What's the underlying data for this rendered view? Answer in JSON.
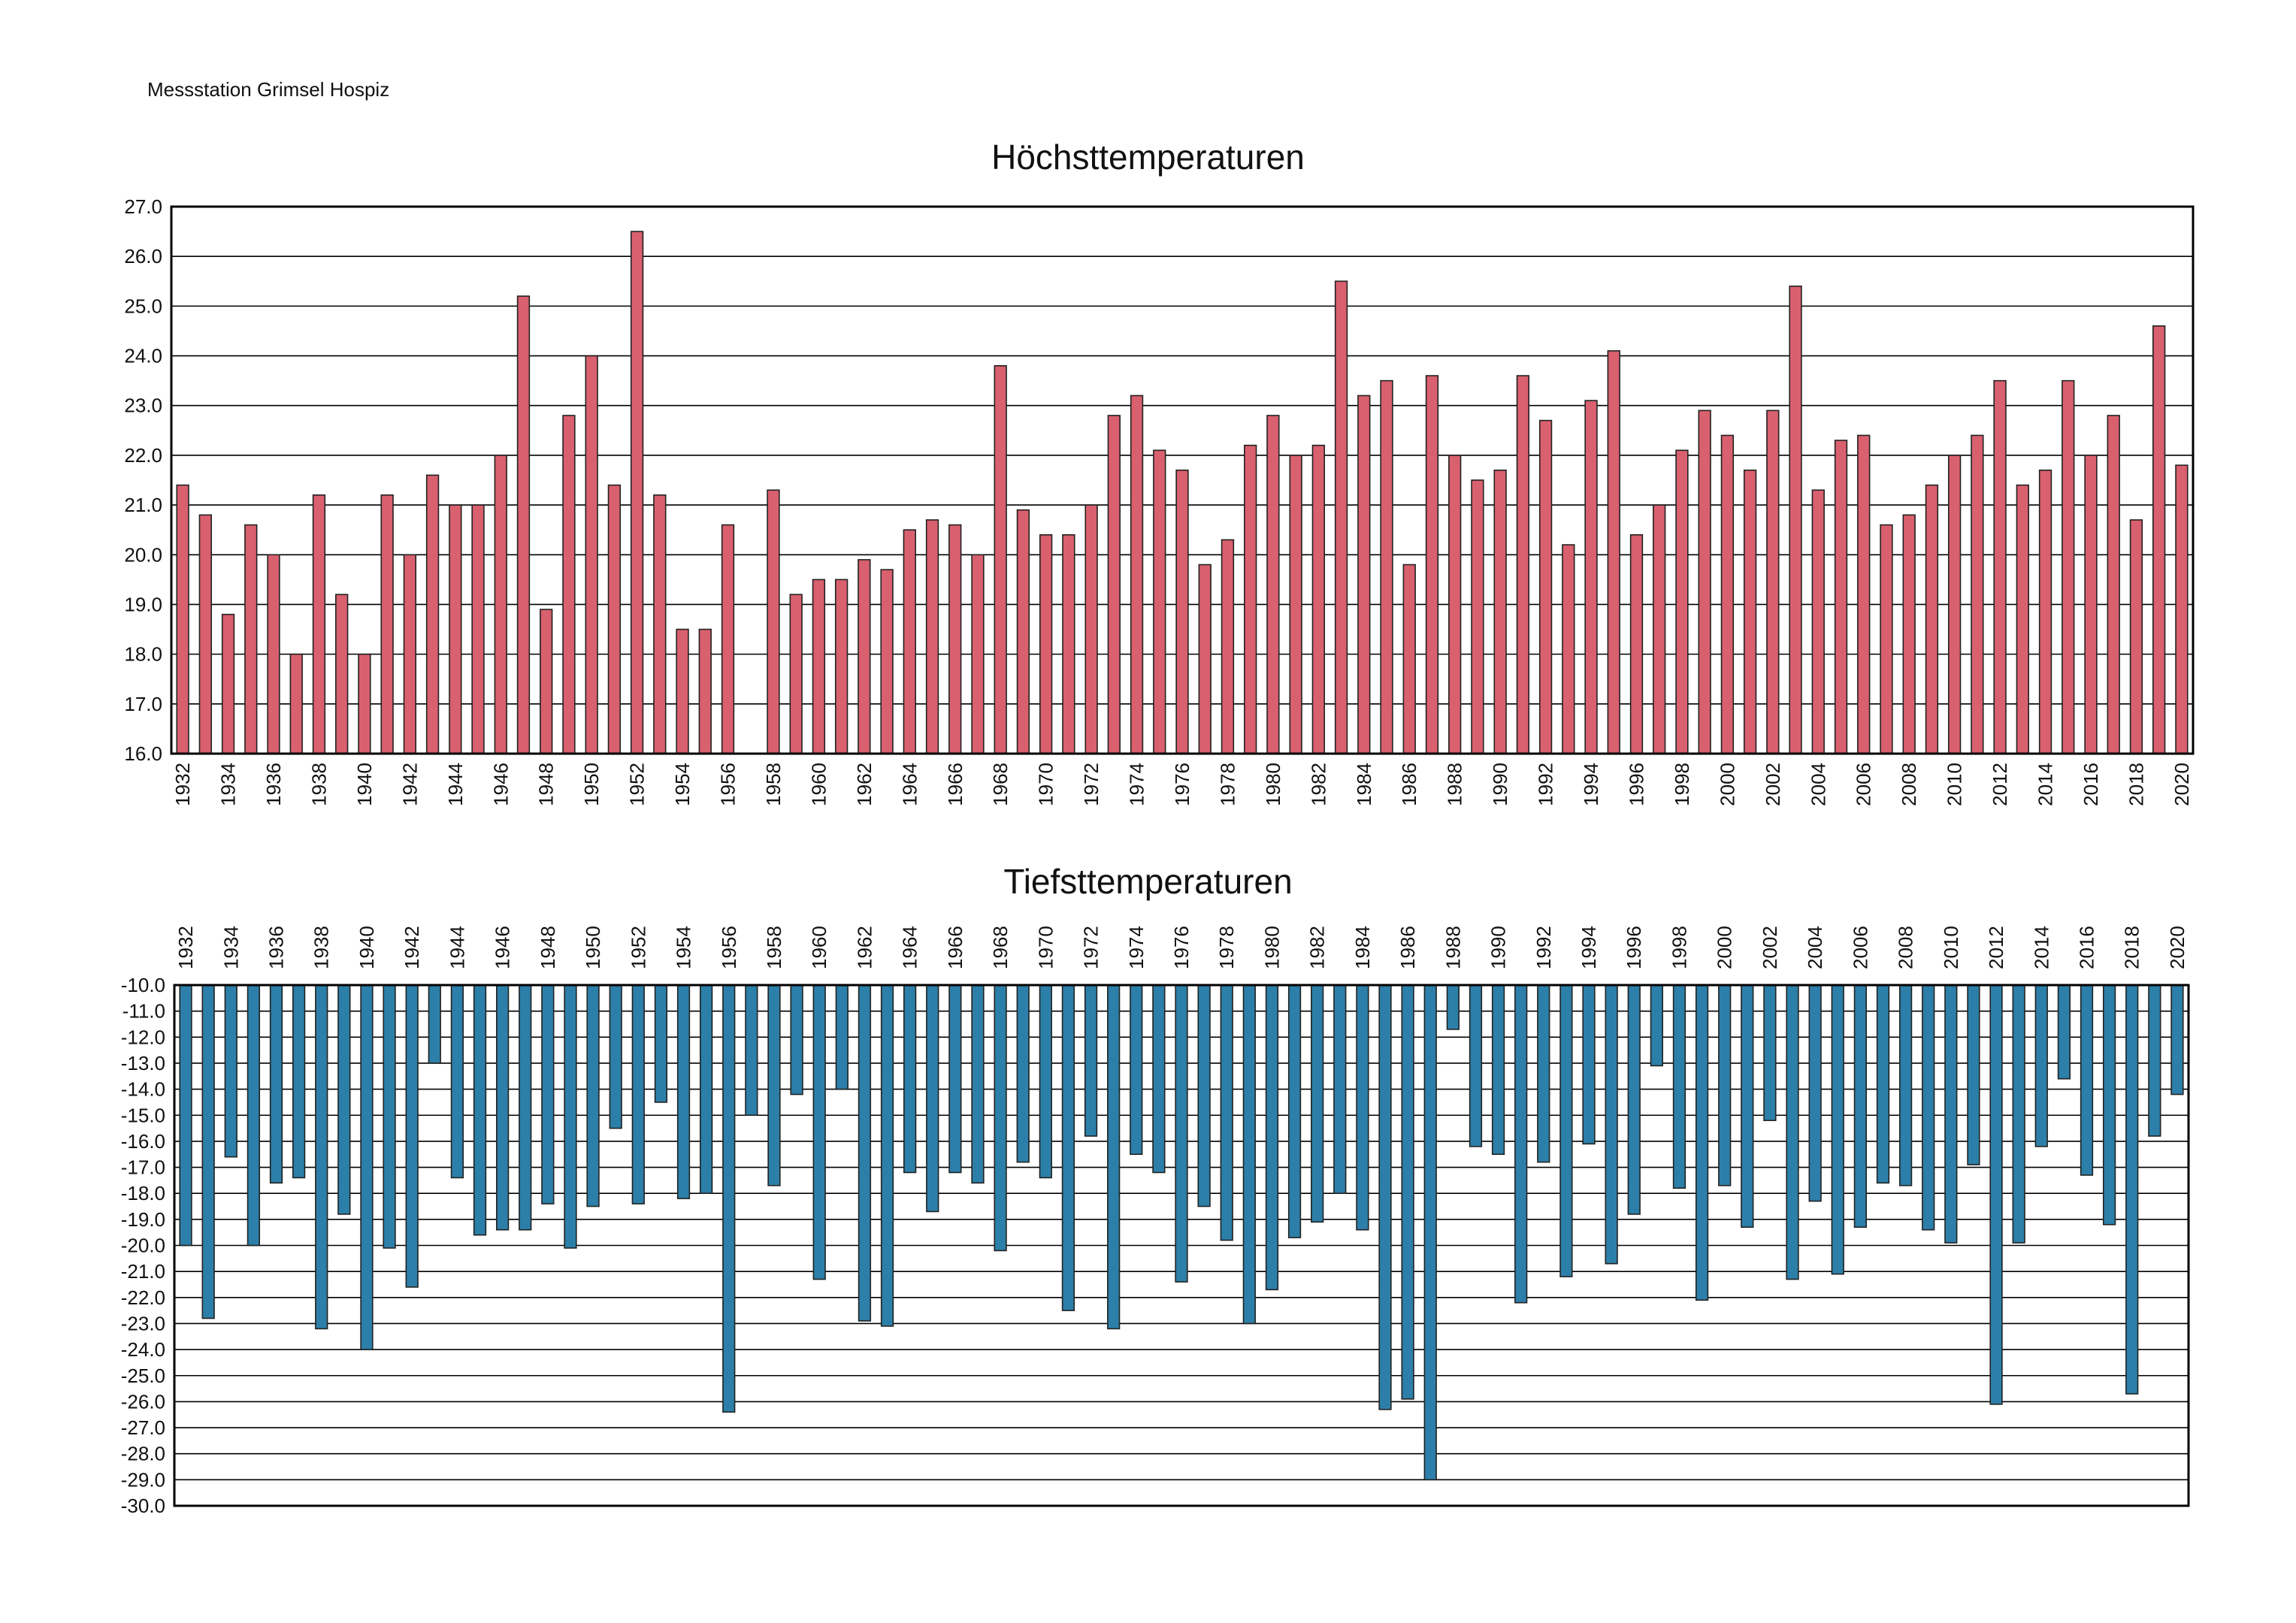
{
  "header": {
    "station": "Messstation Grimsel Hospiz"
  },
  "chart_data": [
    {
      "type": "bar",
      "title": "Höchsttemperaturen",
      "xlabel": "",
      "ylabel": "",
      "ylim": [
        16.0,
        27.0
      ],
      "yticks": [
        "16.0",
        "17.0",
        "18.0",
        "19.0",
        "20.0",
        "21.0",
        "22.0",
        "23.0",
        "24.0",
        "25.0",
        "26.0",
        "27.0"
      ],
      "grid": true,
      "color": "#d9606e",
      "categories": [
        1932,
        1933,
        1934,
        1935,
        1936,
        1937,
        1938,
        1939,
        1940,
        1941,
        1942,
        1943,
        1944,
        1945,
        1946,
        1947,
        1948,
        1949,
        1950,
        1951,
        1952,
        1953,
        1954,
        1955,
        1956,
        1957,
        1958,
        1959,
        1960,
        1961,
        1962,
        1963,
        1964,
        1965,
        1966,
        1967,
        1968,
        1969,
        1970,
        1971,
        1972,
        1973,
        1974,
        1975,
        1976,
        1977,
        1978,
        1979,
        1980,
        1981,
        1982,
        1983,
        1984,
        1985,
        1986,
        1987,
        1988,
        1989,
        1990,
        1991,
        1992,
        1993,
        1994,
        1995,
        1996,
        1997,
        1998,
        1999,
        2000,
        2001,
        2002,
        2003,
        2004,
        2005,
        2006,
        2007,
        2008,
        2009,
        2010,
        2011,
        2012,
        2013,
        2014,
        2015,
        2016,
        2017,
        2018,
        2019,
        2020
      ],
      "tick_labels": [
        "1932",
        "1934",
        "1936",
        "1938",
        "1940",
        "1942",
        "1944",
        "1946",
        "1948",
        "1950",
        "1952",
        "1954",
        "1956",
        "1958",
        "1960",
        "1962",
        "1964",
        "1966",
        "1968",
        "1970",
        "1972",
        "1974",
        "1976",
        "1978",
        "1980",
        "1982",
        "1984",
        "1986",
        "1988",
        "1990",
        "1992",
        "1994",
        "1996",
        "1998",
        "2000",
        "2002",
        "2004",
        "2006",
        "2008",
        "2010",
        "2012",
        "2014",
        "2016",
        "2018",
        "2020"
      ],
      "values": [
        21.4,
        20.8,
        18.8,
        20.6,
        20.0,
        18.0,
        21.2,
        19.2,
        18.0,
        21.2,
        20.0,
        21.6,
        21.0,
        21.0,
        22.0,
        25.2,
        18.9,
        22.8,
        24.0,
        21.4,
        26.5,
        21.2,
        18.5,
        18.5,
        20.6,
        null,
        21.3,
        19.2,
        19.5,
        19.5,
        19.9,
        19.7,
        20.5,
        20.7,
        20.6,
        20.0,
        23.8,
        20.9,
        20.4,
        20.4,
        21.0,
        22.8,
        23.2,
        22.1,
        21.7,
        19.8,
        20.3,
        22.2,
        22.8,
        22.0,
        22.2,
        25.5,
        23.2,
        23.5,
        19.8,
        23.6,
        22.0,
        21.5,
        21.7,
        23.6,
        22.7,
        20.2,
        23.1,
        24.1,
        20.4,
        21.0,
        22.1,
        22.9,
        22.4,
        21.7,
        22.9,
        25.4,
        21.3,
        22.3,
        22.4,
        20.6,
        20.8,
        21.4,
        22.0,
        22.4,
        23.5,
        21.4,
        21.7,
        23.5,
        22.0,
        22.8,
        20.7,
        24.6,
        21.8
      ]
    },
    {
      "type": "bar",
      "title": "Tiefsttemperaturen",
      "xlabel": "",
      "ylabel": "",
      "ylim": [
        -30.0,
        -10.0
      ],
      "yticks": [
        "-10.0",
        "-11.0",
        "-12.0",
        "-13.0",
        "-14.0",
        "-15.0",
        "-16.0",
        "-17.0",
        "-18.0",
        "-19.0",
        "-20.0",
        "-21.0",
        "-22.0",
        "-23.0",
        "-24.0",
        "-25.0",
        "-26.0",
        "-27.0",
        "-28.0",
        "-29.0",
        "-30.0"
      ],
      "grid": true,
      "color": "#2c7fa8",
      "categories": [
        1932,
        1933,
        1934,
        1935,
        1936,
        1937,
        1938,
        1939,
        1940,
        1941,
        1942,
        1943,
        1944,
        1945,
        1946,
        1947,
        1948,
        1949,
        1950,
        1951,
        1952,
        1953,
        1954,
        1955,
        1956,
        1957,
        1958,
        1959,
        1960,
        1961,
        1962,
        1963,
        1964,
        1965,
        1966,
        1967,
        1968,
        1969,
        1970,
        1971,
        1972,
        1973,
        1974,
        1975,
        1976,
        1977,
        1978,
        1979,
        1980,
        1981,
        1982,
        1983,
        1984,
        1985,
        1986,
        1987,
        1988,
        1989,
        1990,
        1991,
        1992,
        1993,
        1994,
        1995,
        1996,
        1997,
        1998,
        1999,
        2000,
        2001,
        2002,
        2003,
        2004,
        2005,
        2006,
        2007,
        2008,
        2009,
        2010,
        2011,
        2012,
        2013,
        2014,
        2015,
        2016,
        2017,
        2018,
        2019,
        2020
      ],
      "tick_labels": [
        "1932",
        "1934",
        "1936",
        "1938",
        "1940",
        "1942",
        "1944",
        "1946",
        "1948",
        "1950",
        "1952",
        "1954",
        "1956",
        "1958",
        "1960",
        "1962",
        "1964",
        "1966",
        "1968",
        "1970",
        "1972",
        "1974",
        "1976",
        "1978",
        "1980",
        "1982",
        "1984",
        "1986",
        "1988",
        "1990",
        "1992",
        "1994",
        "1996",
        "1998",
        "2000",
        "2002",
        "2004",
        "2006",
        "2008",
        "2010",
        "2012",
        "2014",
        "2016",
        "2018",
        "2020"
      ],
      "values": [
        -20.0,
        -22.8,
        -16.6,
        -20.0,
        -17.6,
        -17.4,
        -23.2,
        -18.8,
        -24.0,
        -20.1,
        -21.6,
        -13.0,
        -17.4,
        -19.6,
        -19.4,
        -19.4,
        -18.4,
        -20.1,
        -18.5,
        -15.5,
        -18.4,
        -14.5,
        -18.2,
        -18.0,
        -26.4,
        -15.0,
        -17.7,
        -14.2,
        -21.3,
        -14.0,
        -22.9,
        -23.1,
        -17.2,
        -18.7,
        -17.2,
        -17.6,
        -20.2,
        -16.8,
        -17.4,
        -22.5,
        -15.8,
        -23.2,
        -16.5,
        -17.2,
        -21.4,
        -18.5,
        -19.8,
        -23.0,
        -21.7,
        -19.7,
        -19.1,
        -18.0,
        -19.4,
        -26.3,
        -25.9,
        -29.0,
        -11.7,
        -16.2,
        -16.5,
        -22.2,
        -16.8,
        -21.2,
        -16.1,
        -20.7,
        -18.8,
        -13.1,
        -17.8,
        -22.1,
        -17.7,
        -19.3,
        -15.2,
        -21.3,
        -18.3,
        -21.1,
        -19.3,
        -17.6,
        -17.7,
        -19.4,
        -19.9,
        -16.9,
        -26.1,
        -19.9,
        -16.2,
        -13.6,
        -17.3,
        -19.2,
        -25.7,
        -15.8,
        -14.2
      ]
    }
  ]
}
